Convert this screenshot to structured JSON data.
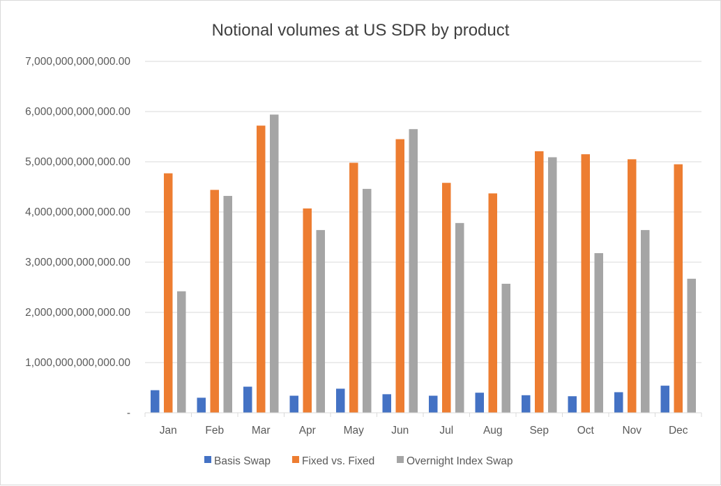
{
  "chart_data": {
    "type": "bar",
    "title": "Notional volumes at US SDR by product",
    "xlabel": "",
    "ylabel": "",
    "ylim": [
      0,
      7000000000000
    ],
    "yticks": [
      0,
      1000000000000,
      2000000000000,
      3000000000000,
      4000000000000,
      5000000000000,
      6000000000000,
      7000000000000
    ],
    "ytick_labels": [
      "-",
      "1,000,000,000,000.00",
      "2,000,000,000,000.00",
      "3,000,000,000,000.00",
      "4,000,000,000,000.00",
      "5,000,000,000,000.00",
      "6,000,000,000,000.00",
      "7,000,000,000,000.00"
    ],
    "categories": [
      "Jan",
      "Feb",
      "Mar",
      "Apr",
      "May",
      "Jun",
      "Jul",
      "Aug",
      "Sep",
      "Oct",
      "Nov",
      "Dec"
    ],
    "grid": true,
    "legend_position": "bottom",
    "series": [
      {
        "name": "Basis Swap",
        "color": "#4472c4",
        "values": [
          450000000000,
          300000000000,
          520000000000,
          340000000000,
          480000000000,
          370000000000,
          340000000000,
          400000000000,
          350000000000,
          330000000000,
          410000000000,
          540000000000
        ]
      },
      {
        "name": "Fixed vs. Fixed",
        "color": "#ed7d31",
        "values": [
          4770000000000,
          4440000000000,
          5720000000000,
          4070000000000,
          4980000000000,
          5450000000000,
          4580000000000,
          4370000000000,
          5210000000000,
          5150000000000,
          5050000000000,
          4950000000000
        ]
      },
      {
        "name": "Overnight Index Swap",
        "color": "#a5a5a5",
        "values": [
          2420000000000,
          4320000000000,
          5940000000000,
          3640000000000,
          4460000000000,
          5650000000000,
          3780000000000,
          2570000000000,
          5090000000000,
          3180000000000,
          3640000000000,
          2670000000000
        ]
      }
    ]
  }
}
